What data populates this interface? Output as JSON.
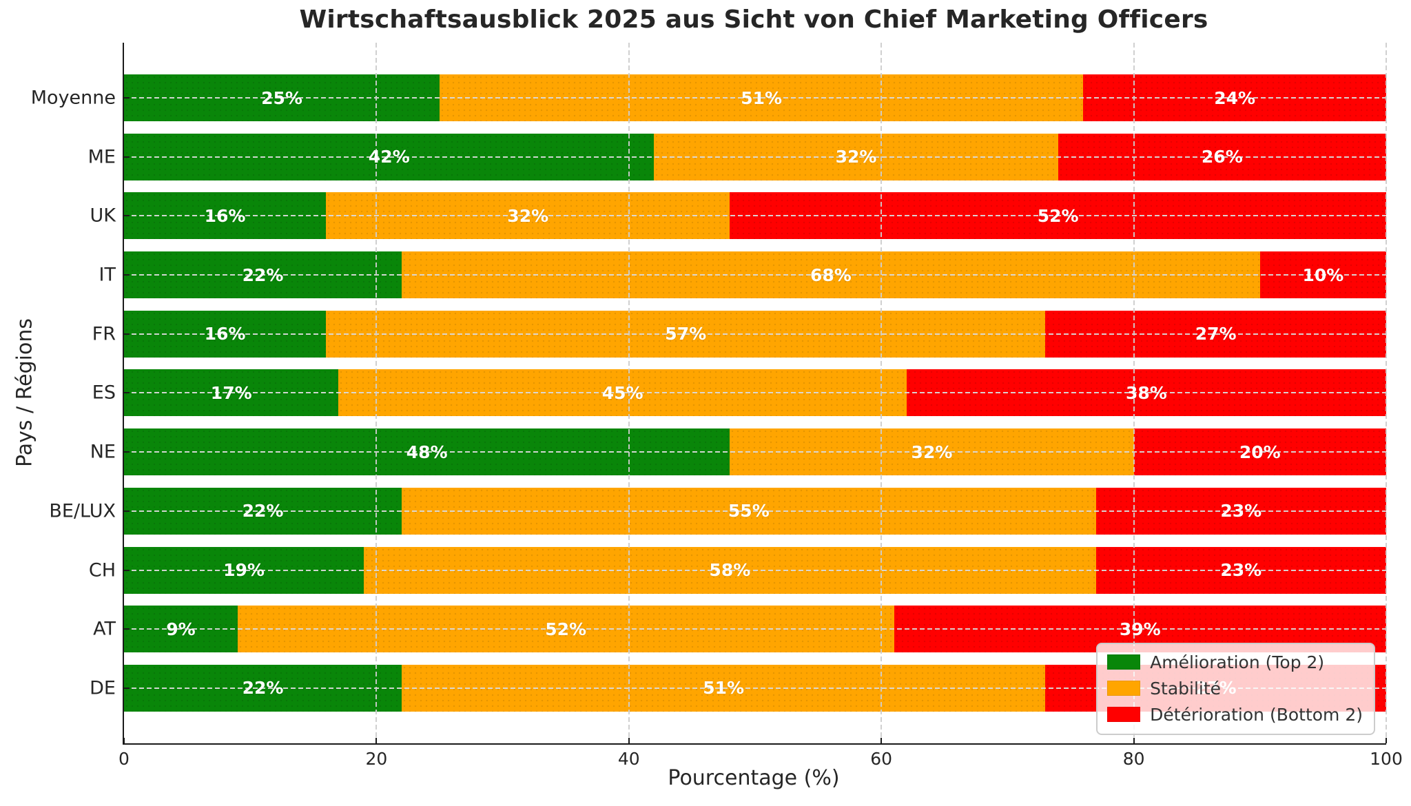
{
  "title": "Wirtschaftsausblick 2025 aus Sicht von Chief Marketing Officers",
  "axes": {
    "x_label": "Pourcentage (%)",
    "y_label": "Pays / Régions"
  },
  "legend": {
    "items": [
      {
        "label": "Amélioration (Top 2)",
        "color": "#098609"
      },
      {
        "label": "Stabilité",
        "color": "#ffa500"
      },
      {
        "label": "Détérioration (Bottom 2)",
        "color": "#ff0000"
      }
    ]
  },
  "colors": {
    "improvement_green": "#098609",
    "stability_orange": "#ffa500",
    "deterioration_red": "#ff0000",
    "grid": "#d0d0d0",
    "axis": "#1a1a1a",
    "text": "#262626",
    "bar_label": "#ffffff",
    "legend_background": "rgba(255,255,255,0.8)"
  },
  "chart_data": {
    "type": "bar",
    "orientation": "horizontal",
    "stacked": true,
    "title": "Wirtschaftsausblick 2025 aus Sicht von Chief Marketing Officers",
    "xlabel": "Pourcentage (%)",
    "ylabel": "Pays / Régions",
    "xlim": [
      0,
      100
    ],
    "xticks": [
      0,
      20,
      40,
      60,
      80,
      100
    ],
    "grid": true,
    "legend_position": "lower-right",
    "unit": "%",
    "categories_top_to_bottom": [
      "Moyenne",
      "ME",
      "UK",
      "IT",
      "FR",
      "ES",
      "NE",
      "BE/LUX",
      "CH",
      "AT",
      "DE"
    ],
    "series": [
      {
        "name": "Amélioration (Top 2)",
        "color": "#098609",
        "values": [
          25,
          42,
          16,
          22,
          16,
          17,
          48,
          22,
          19,
          9,
          22
        ]
      },
      {
        "name": "Stabilité",
        "color": "#ffa500",
        "values": [
          51,
          32,
          32,
          68,
          57,
          45,
          32,
          55,
          58,
          52,
          51
        ]
      },
      {
        "name": "Détérioration (Bottom 2)",
        "color": "#ff0000",
        "values": [
          24,
          26,
          52,
          10,
          27,
          38,
          20,
          23,
          23,
          39,
          27
        ]
      }
    ]
  }
}
